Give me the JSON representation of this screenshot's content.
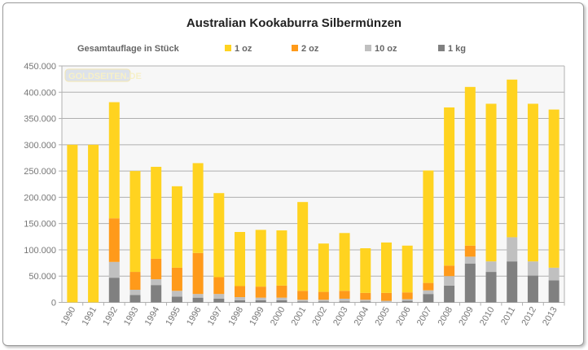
{
  "chart_data": {
    "type": "bar",
    "stacked": true,
    "title": "Australian Kookaburra Silbermünzen",
    "legend_title": "Gesamtauflage in Stück",
    "legend_position": "top",
    "watermark": "GOLDSEITEN.DE",
    "categories": [
      "1990",
      "1991",
      "1992",
      "1993",
      "1994",
      "1995",
      "1996",
      "1997",
      "1998",
      "1999",
      "2000",
      "2001",
      "2002",
      "2003",
      "2004",
      "2005",
      "2006",
      "2007",
      "2008",
      "2009",
      "2010",
      "2011",
      "2012",
      "2013"
    ],
    "series": [
      {
        "name": "1 kg",
        "color": "#808080",
        "values": [
          0,
          0,
          47000,
          14000,
          33000,
          11000,
          9000,
          7000,
          4000,
          4000,
          4000,
          2000,
          2000,
          2000,
          2000,
          0,
          3000,
          16000,
          32000,
          74000,
          58000,
          78000,
          51000,
          42000
        ]
      },
      {
        "name": "10 oz",
        "color": "#c0c0c0",
        "values": [
          0,
          0,
          30000,
          10000,
          11000,
          11000,
          7000,
          9000,
          6000,
          5000,
          5000,
          3000,
          3000,
          5000,
          3000,
          3000,
          3000,
          7000,
          18000,
          13000,
          20000,
          46000,
          27000,
          24000
        ]
      },
      {
        "name": "2 oz",
        "color": "#ff9a1a",
        "values": [
          0,
          0,
          83000,
          34000,
          39000,
          44000,
          78000,
          32000,
          21000,
          21000,
          23000,
          17000,
          15000,
          15000,
          13000,
          15000,
          13000,
          14000,
          20000,
          21000,
          0,
          0,
          0,
          0
        ]
      },
      {
        "name": "1 oz",
        "color": "#ffd320",
        "values": [
          300000,
          300000,
          221000,
          192000,
          175000,
          155000,
          171000,
          160000,
          103000,
          108000,
          105000,
          169000,
          92000,
          110000,
          85000,
          96000,
          89000,
          214000,
          301000,
          302000,
          300000,
          300000,
          300000,
          301000
        ]
      }
    ],
    "legend_order": [
      3,
      2,
      1,
      0
    ],
    "ylim": [
      0,
      450000
    ],
    "yticks": [
      0,
      50000,
      100000,
      150000,
      200000,
      250000,
      300000,
      350000,
      400000,
      450000
    ],
    "ytick_labels": [
      "0",
      "50.000",
      "100.000",
      "150.000",
      "200.000",
      "250.000",
      "300.000",
      "350.000",
      "400.000",
      "450.000"
    ],
    "grid": true,
    "xlabel": "",
    "ylabel": ""
  }
}
